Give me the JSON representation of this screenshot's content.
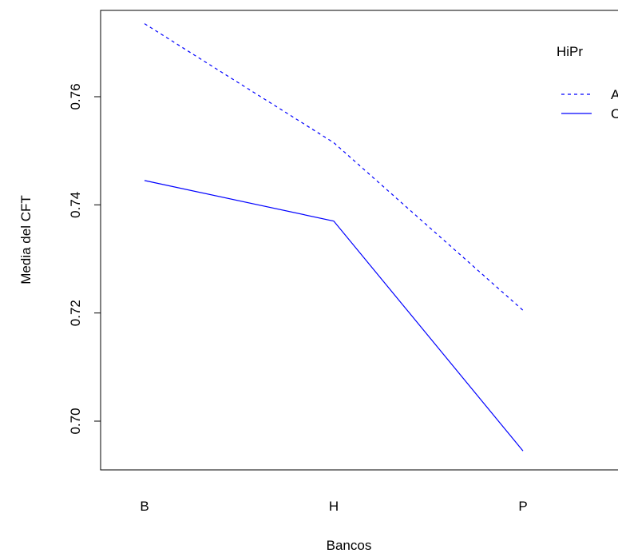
{
  "chart_data": {
    "type": "line",
    "xlabel": "Bancos",
    "ylabel": "Media del CFT",
    "categories": [
      "B",
      "H",
      "P"
    ],
    "yticks": [
      "0.70",
      "0.72",
      "0.74",
      "0.76"
    ],
    "ylim": [
      0.6915,
      0.776
    ],
    "legend_title": "HiPr",
    "legend_position": "top-right",
    "series": [
      {
        "name": "A",
        "values": [
          0.7735,
          0.7515,
          0.7205
        ],
        "dash": "dashed",
        "color": "#0000ff"
      },
      {
        "name": "C",
        "values": [
          0.7445,
          0.737,
          0.6945
        ],
        "dash": "solid",
        "color": "#0000ff"
      }
    ],
    "grid": false
  }
}
